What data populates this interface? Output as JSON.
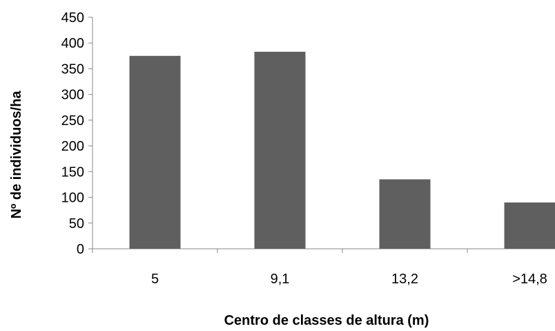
{
  "chart_data": {
    "type": "bar",
    "title": "",
    "xlabel": "Centro de classes de altura (m)",
    "ylabel": "Nº de individuos/ha",
    "categories": [
      "5",
      "9,1",
      "13,2",
      ">14,8"
    ],
    "values": [
      375,
      383,
      135,
      90
    ],
    "ylim": [
      0,
      450
    ],
    "yticks": [
      "0",
      "50",
      "100",
      "150",
      "200",
      "250",
      "300",
      "350",
      "400",
      "450"
    ],
    "grid": false,
    "legend": "none",
    "bar_color": "#5f5f5f",
    "axis_color": "#888888"
  }
}
